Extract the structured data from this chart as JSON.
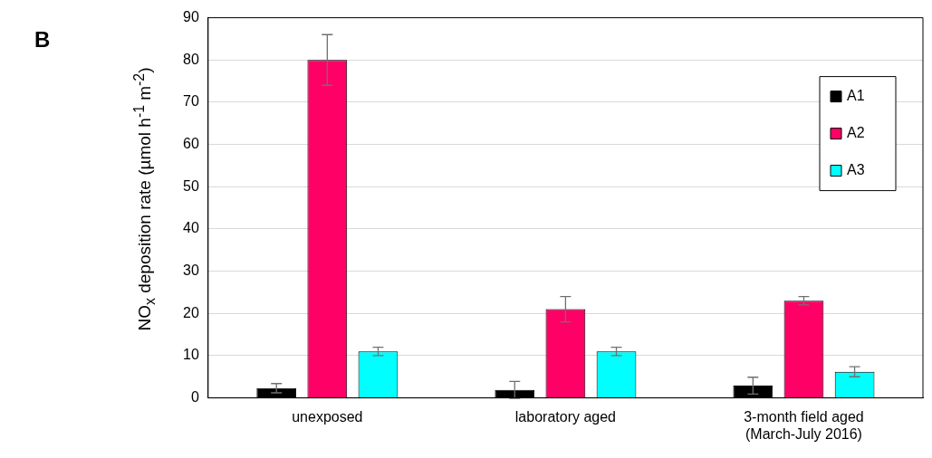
{
  "chart_data": {
    "type": "bar",
    "ylabel": "NO$_{x}$ deposition rate (µmol h$^{-1}$ m$^{-2}$)",
    "annotations": [
      "B"
    ],
    "categories": [
      "unexposed",
      "laboratory aged",
      "3-month field aged\n(March-July 2016)"
    ],
    "series": [
      {
        "name": "A1",
        "color": "#000000",
        "values": [
          2.3,
          1.9,
          2.9
        ],
        "errors": [
          1.1,
          2,
          2
        ]
      },
      {
        "name": "A2",
        "color": "#ff0066",
        "values": [
          80,
          21,
          23
        ],
        "errors": [
          6,
          3,
          1
        ]
      },
      {
        "name": "A3",
        "color": "#00ffff",
        "values": [
          11,
          11,
          6.2
        ],
        "errors": [
          1,
          1,
          1.2
        ]
      }
    ],
    "ylim": [
      0,
      90
    ],
    "yticks": [
      0,
      10,
      20,
      30,
      40,
      50,
      60,
      70,
      80,
      90
    ],
    "grid": "y",
    "legend": "top right"
  }
}
